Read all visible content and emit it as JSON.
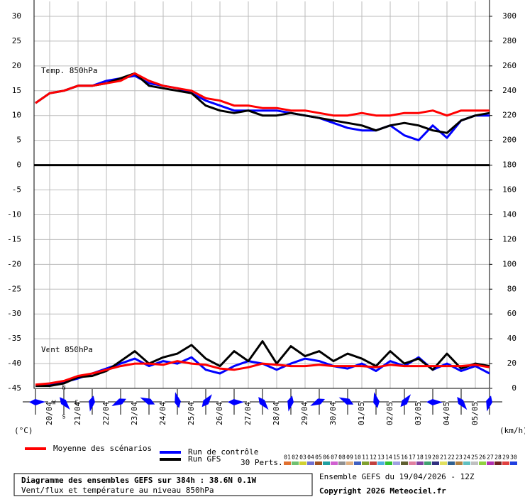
{
  "chart_data": {
    "type": "line",
    "title": "Diagramme des ensembles GEFS sur 384h : 38.6N 0.1W",
    "subtitle": "Vent/flux et température au niveau 850hPa",
    "run_info": "Ensemble GEFS du 19/04/2026 - 12Z",
    "copyright": "Copyright 2026 Meteociel.fr",
    "annotations": [
      "Temp. 850hPa",
      "Vent 850hPa"
    ],
    "ylabel": "(°C)",
    "y2label": "(km/h)",
    "compass": [
      "N",
      "W",
      "E",
      "S"
    ],
    "x": [
      0,
      12,
      24,
      36,
      48,
      60,
      72,
      84,
      96,
      108,
      120,
      132,
      144,
      156,
      168,
      180,
      192,
      204,
      216,
      228,
      240,
      252,
      264,
      276,
      288,
      300,
      312,
      324,
      336,
      348,
      360,
      372,
      384
    ],
    "xlim": [
      0,
      384
    ],
    "xticks": [
      {
        "value": 12,
        "label": "20/04"
      },
      {
        "value": 36,
        "label": "21/04"
      },
      {
        "value": 60,
        "label": "22/04"
      },
      {
        "value": 84,
        "label": "23/04"
      },
      {
        "value": 108,
        "label": "24/04"
      },
      {
        "value": 132,
        "label": "25/04"
      },
      {
        "value": 156,
        "label": "26/04"
      },
      {
        "value": 180,
        "label": "27/04"
      },
      {
        "value": 204,
        "label": "28/04"
      },
      {
        "value": 228,
        "label": "29/04"
      },
      {
        "value": 252,
        "label": "30/04"
      },
      {
        "value": 276,
        "label": "01/05"
      },
      {
        "value": 300,
        "label": "02/05"
      },
      {
        "value": 324,
        "label": "03/05"
      },
      {
        "value": 348,
        "label": "04/05"
      },
      {
        "value": 372,
        "label": "05/05"
      }
    ],
    "ylim": [
      -45,
      33
    ],
    "yticks": [
      30,
      25,
      20,
      15,
      10,
      5,
      0,
      -5,
      -10,
      -15,
      -20,
      -25,
      -30,
      -35,
      -40,
      -45
    ],
    "y2lim": [
      0,
      312
    ],
    "y2ticks": [
      300,
      280,
      260,
      240,
      220,
      200,
      180,
      160,
      140,
      120,
      100,
      80,
      60,
      40,
      20,
      0
    ],
    "grid": true,
    "series": [
      {
        "name": "Moyenne des scénarios",
        "color": "#ff0000",
        "values": [
          12.5,
          14.5,
          15,
          16,
          16,
          16.5,
          17,
          18.5,
          17,
          16,
          15.5,
          15,
          13.5,
          13,
          12,
          12,
          11.5,
          11.5,
          11,
          11,
          10.5,
          10,
          10,
          10.5,
          10,
          10,
          10.5,
          10.5,
          11,
          10,
          11,
          11,
          11
        ]
      },
      {
        "name": "Run de contrôle",
        "color": "#0000ff",
        "values": [
          12.5,
          14.5,
          15,
          16,
          16,
          17,
          17.5,
          18,
          16.5,
          16,
          15.5,
          14.5,
          13,
          12,
          11,
          11,
          11,
          11,
          10.5,
          10,
          9.5,
          8.5,
          7.5,
          7,
          7,
          8,
          6,
          5,
          8,
          5.5,
          9,
          10,
          10
        ]
      },
      {
        "name": "Run GFS",
        "color": "#000000",
        "values": [
          12.5,
          14.5,
          15,
          16,
          16,
          16.5,
          17.5,
          18.5,
          16,
          15.5,
          15,
          14.5,
          12,
          11,
          10.5,
          11,
          10,
          10,
          10.5,
          10,
          9.5,
          9,
          8.5,
          8,
          7,
          8,
          8.5,
          8,
          7,
          6.5,
          9,
          10,
          10.5
        ]
      },
      {
        "name": "Moyenne des scénarios",
        "color": "#ff0000",
        "axis": "y2",
        "values": [
          3,
          4,
          6,
          10,
          12,
          15,
          18,
          20,
          20,
          19,
          22,
          20,
          19,
          16,
          15,
          17,
          20,
          19,
          18,
          18,
          19,
          18,
          18,
          18,
          17,
          19,
          18,
          18,
          18,
          18,
          18,
          19,
          17
        ]
      },
      {
        "name": "Run de contrôle",
        "color": "#0000ff",
        "axis": "y2",
        "values": [
          2,
          3,
          5,
          8,
          12,
          16,
          20,
          24,
          18,
          22,
          20,
          25,
          15,
          12,
          18,
          22,
          20,
          15,
          20,
          24,
          22,
          18,
          16,
          20,
          14,
          22,
          18,
          25,
          15,
          20,
          14,
          18,
          12
        ]
      },
      {
        "name": "Run GFS",
        "color": "#000000",
        "axis": "y2",
        "values": [
          2,
          2,
          4,
          9,
          10,
          14,
          22,
          30,
          20,
          25,
          28,
          35,
          24,
          18,
          30,
          22,
          38,
          20,
          34,
          26,
          30,
          22,
          28,
          24,
          18,
          30,
          20,
          24,
          15,
          28,
          16,
          20,
          18
        ]
      }
    ],
    "perturbations": {
      "label": "30 Perts.",
      "members": [
        {
          "name": "01",
          "color": "#e07030"
        },
        {
          "name": "02",
          "color": "#70c070"
        },
        {
          "name": "03",
          "color": "#d0d030"
        },
        {
          "name": "04",
          "color": "#7070d0"
        },
        {
          "name": "05",
          "color": "#a05020"
        },
        {
          "name": "06",
          "color": "#20a0a0"
        },
        {
          "name": "07",
          "color": "#d060d0"
        },
        {
          "name": "08",
          "color": "#909090"
        },
        {
          "name": "09",
          "color": "#e0b080"
        },
        {
          "name": "10",
          "color": "#4060c0"
        },
        {
          "name": "11",
          "color": "#80a030"
        },
        {
          "name": "12",
          "color": "#c04040"
        },
        {
          "name": "13",
          "color": "#50b0e0"
        },
        {
          "name": "14",
          "color": "#30c030"
        },
        {
          "name": "15",
          "color": "#a0a0e0"
        },
        {
          "name": "16",
          "color": "#606030"
        },
        {
          "name": "17",
          "color": "#e080a0"
        },
        {
          "name": "18",
          "color": "#8040a0"
        },
        {
          "name": "19",
          "color": "#40a070"
        },
        {
          "name": "20",
          "color": "#303080"
        },
        {
          "name": "21",
          "color": "#e0e060"
        },
        {
          "name": "22",
          "color": "#306090"
        },
        {
          "name": "23",
          "color": "#b08040"
        },
        {
          "name": "24",
          "color": "#60c0c0"
        },
        {
          "name": "25",
          "color": "#c0c0c0"
        },
        {
          "name": "26",
          "color": "#90d040"
        },
        {
          "name": "27",
          "color": "#b030b0"
        },
        {
          "name": "28",
          "color": "#702020"
        },
        {
          "name": "29",
          "color": "#e04040"
        },
        {
          "name": "30",
          "color": "#2040e0"
        }
      ]
    }
  }
}
